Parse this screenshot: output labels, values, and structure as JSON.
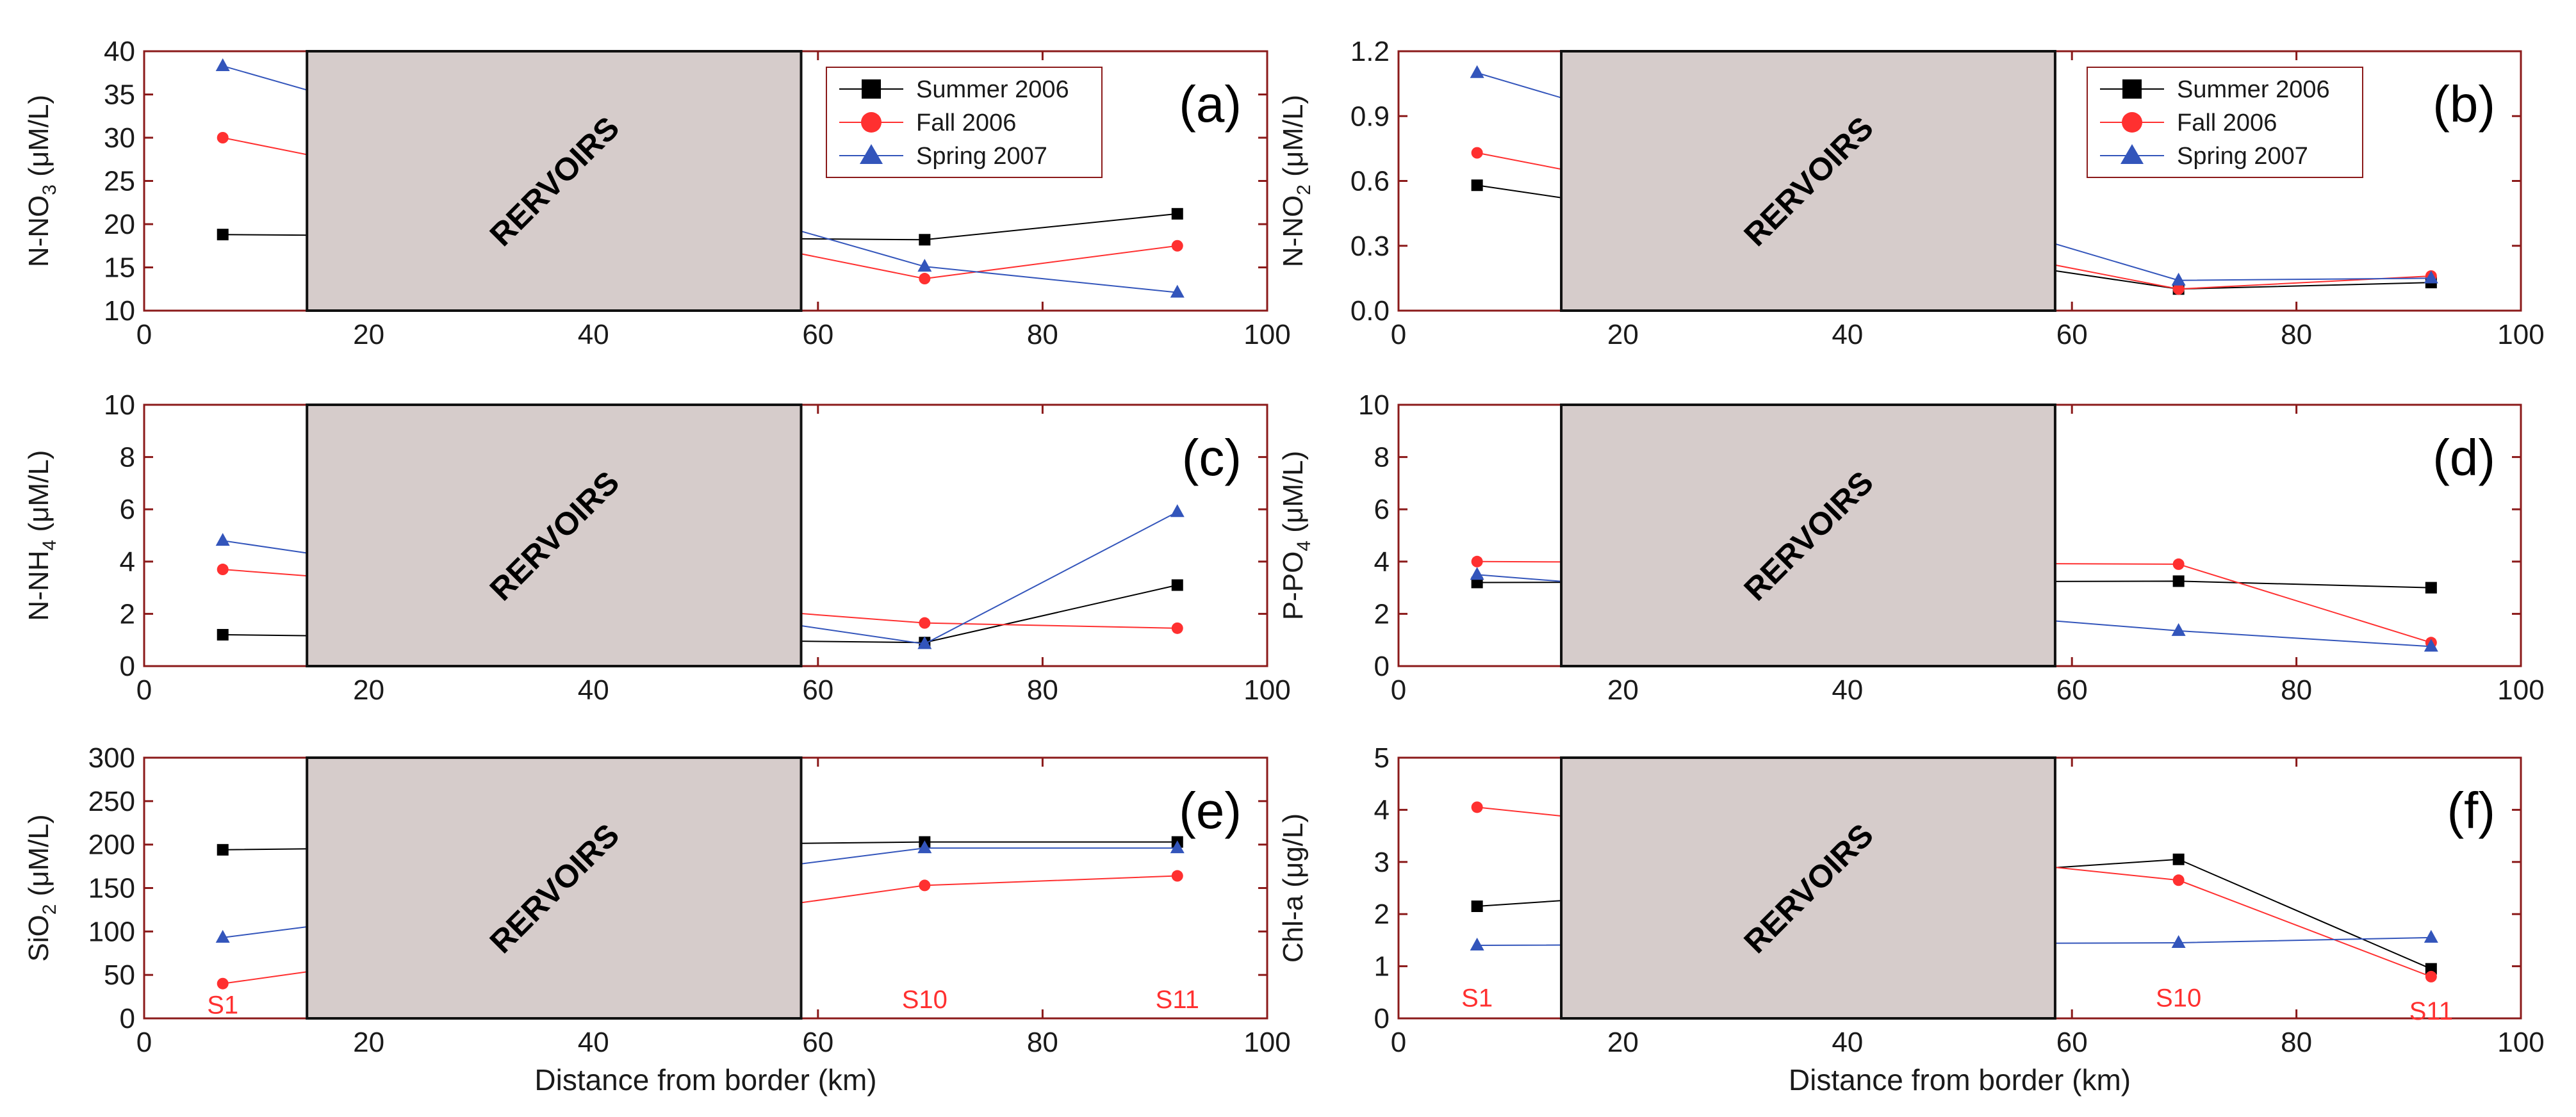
{
  "chart_data": [
    {
      "id": "a",
      "type": "line",
      "panel_tag": "(a)",
      "ylabel": {
        "base": "N-NO",
        "sub": "3",
        "unit": " (μM/L)"
      },
      "xlim": [
        0,
        100
      ],
      "ylim": [
        10,
        40
      ],
      "xticks": [
        0,
        20,
        40,
        60,
        80,
        100
      ],
      "yticks": [
        10,
        15,
        20,
        25,
        30,
        35,
        40
      ],
      "xlabel": "",
      "reservoir": {
        "label": "RERVOIRS",
        "x_range": [
          14.5,
          58.5
        ]
      },
      "legend": {
        "show": true,
        "position": "top-right"
      },
      "stations": [],
      "series": [
        {
          "name": "Summer 2006",
          "color": "#000000",
          "marker": "square",
          "points": [
            {
              "x": 7,
              "y": 18.8
            },
            {
              "x": 69.5,
              "y": 18.2
            },
            {
              "x": 92,
              "y": 21.2
            }
          ]
        },
        {
          "name": "Fall 2006",
          "color": "#ff3030",
          "marker": "circle",
          "points": [
            {
              "x": 7,
              "y": 30
            },
            {
              "x": 69.5,
              "y": 13.7
            },
            {
              "x": 92,
              "y": 17.5
            }
          ]
        },
        {
          "name": "Spring 2007",
          "color": "#3355bb",
          "marker": "triangle",
          "points": [
            {
              "x": 7,
              "y": 38.3
            },
            {
              "x": 69.5,
              "y": 15.1
            },
            {
              "x": 92,
              "y": 12.1
            }
          ]
        }
      ]
    },
    {
      "id": "b",
      "type": "line",
      "panel_tag": "(b)",
      "ylabel": {
        "base": "N-NO",
        "sub": "2",
        "unit": " (μM/L)"
      },
      "xlim": [
        0,
        100
      ],
      "ylim": [
        0,
        1.2
      ],
      "xticks": [
        0,
        20,
        40,
        60,
        80,
        100
      ],
      "yticks": [
        "0.0",
        "0.3",
        "0.6",
        "0.9",
        "1.2"
      ],
      "xlabel": "",
      "reservoir": {
        "label": "RERVOIRS",
        "x_range": [
          14.5,
          58.5
        ]
      },
      "legend": {
        "show": true,
        "position": "top-right"
      },
      "stations": [],
      "series": [
        {
          "name": "Summer 2006",
          "color": "#000000",
          "marker": "square",
          "points": [
            {
              "x": 7,
              "y": 0.58
            },
            {
              "x": 69.5,
              "y": 0.1
            },
            {
              "x": 92,
              "y": 0.13
            }
          ]
        },
        {
          "name": "Fall 2006",
          "color": "#ff3030",
          "marker": "circle",
          "points": [
            {
              "x": 7,
              "y": 0.73
            },
            {
              "x": 69.5,
              "y": 0.1
            },
            {
              "x": 92,
              "y": 0.16
            }
          ]
        },
        {
          "name": "Spring 2007",
          "color": "#3355bb",
          "marker": "triangle",
          "points": [
            {
              "x": 7,
              "y": 1.1
            },
            {
              "x": 69.5,
              "y": 0.14
            },
            {
              "x": 92,
              "y": 0.15
            }
          ]
        }
      ]
    },
    {
      "id": "c",
      "type": "line",
      "panel_tag": "(c)",
      "ylabel": {
        "base": "N-NH",
        "sub": "4",
        "unit": " (μM/L)"
      },
      "xlim": [
        0,
        100
      ],
      "ylim": [
        0,
        10
      ],
      "xticks": [
        0,
        20,
        40,
        60,
        80,
        100
      ],
      "yticks": [
        0,
        2,
        4,
        6,
        8,
        10
      ],
      "xlabel": "",
      "reservoir": {
        "label": "RERVOIRS",
        "x_range": [
          14.5,
          58.5
        ]
      },
      "legend": {
        "show": false
      },
      "stations": [],
      "series": [
        {
          "name": "Summer 2006",
          "color": "#000000",
          "marker": "square",
          "points": [
            {
              "x": 7,
              "y": 1.2
            },
            {
              "x": 69.5,
              "y": 0.9
            },
            {
              "x": 92,
              "y": 3.1
            }
          ]
        },
        {
          "name": "Fall 2006",
          "color": "#ff3030",
          "marker": "circle",
          "points": [
            {
              "x": 7,
              "y": 3.7
            },
            {
              "x": 69.5,
              "y": 1.65
            },
            {
              "x": 92,
              "y": 1.45
            }
          ]
        },
        {
          "name": "Spring 2007",
          "color": "#3355bb",
          "marker": "triangle",
          "points": [
            {
              "x": 7,
              "y": 4.8
            },
            {
              "x": 69.5,
              "y": 0.85
            },
            {
              "x": 92,
              "y": 5.9
            }
          ]
        }
      ]
    },
    {
      "id": "d",
      "type": "line",
      "panel_tag": "(d)",
      "ylabel": {
        "base": "P-PO",
        "sub": "4",
        "unit": " (μM/L)"
      },
      "xlim": [
        0,
        100
      ],
      "ylim": [
        0,
        10
      ],
      "xticks": [
        0,
        20,
        40,
        60,
        80,
        100
      ],
      "yticks": [
        0,
        2,
        4,
        6,
        8,
        10
      ],
      "xlabel": "",
      "reservoir": {
        "label": "RERVOIRS",
        "x_range": [
          14.5,
          58.5
        ]
      },
      "legend": {
        "show": false
      },
      "stations": [],
      "series": [
        {
          "name": "Summer 2006",
          "color": "#000000",
          "marker": "square",
          "points": [
            {
              "x": 7,
              "y": 3.2
            },
            {
              "x": 69.5,
              "y": 3.25
            },
            {
              "x": 92,
              "y": 3.0
            }
          ]
        },
        {
          "name": "Fall 2006",
          "color": "#ff3030",
          "marker": "circle",
          "points": [
            {
              "x": 7,
              "y": 4.0
            },
            {
              "x": 69.5,
              "y": 3.9
            },
            {
              "x": 92,
              "y": 0.9
            }
          ]
        },
        {
          "name": "Spring 2007",
          "color": "#3355bb",
          "marker": "triangle",
          "points": [
            {
              "x": 7,
              "y": 3.5
            },
            {
              "x": 69.5,
              "y": 1.35
            },
            {
              "x": 92,
              "y": 0.75
            }
          ]
        }
      ]
    },
    {
      "id": "e",
      "type": "line",
      "panel_tag": "(e)",
      "ylabel": {
        "base": "SiO",
        "sub": "2",
        "unit": " (μM/L)"
      },
      "xlim": [
        0,
        100
      ],
      "ylim": [
        0,
        300
      ],
      "xticks": [
        0,
        20,
        40,
        60,
        80,
        100
      ],
      "yticks": [
        0,
        50,
        100,
        150,
        200,
        250,
        300
      ],
      "xlabel": "Distance from border (km)",
      "reservoir": {
        "label": "RERVOIRS",
        "x_range": [
          14.5,
          58.5
        ]
      },
      "legend": {
        "show": false
      },
      "stations": [
        {
          "label": "S1",
          "x": 7,
          "y": 16
        },
        {
          "label": "S10",
          "x": 69.5,
          "y": 22
        },
        {
          "label": "S11",
          "x": 92,
          "y": 22
        }
      ],
      "series": [
        {
          "name": "Summer 2006",
          "color": "#000000",
          "marker": "square",
          "points": [
            {
              "x": 7,
              "y": 194
            },
            {
              "x": 69.5,
              "y": 203
            },
            {
              "x": 92,
              "y": 203
            }
          ]
        },
        {
          "name": "Fall 2006",
          "color": "#ff3030",
          "marker": "circle",
          "points": [
            {
              "x": 7,
              "y": 40
            },
            {
              "x": 69.5,
              "y": 153
            },
            {
              "x": 92,
              "y": 164
            }
          ]
        },
        {
          "name": "Spring 2007",
          "color": "#3355bb",
          "marker": "triangle",
          "points": [
            {
              "x": 7,
              "y": 93
            },
            {
              "x": 69.5,
              "y": 196
            },
            {
              "x": 92,
              "y": 196
            }
          ]
        }
      ]
    },
    {
      "id": "f",
      "type": "line",
      "panel_tag": "(f)",
      "ylabel": {
        "base": "Chl-a",
        "sub": "",
        "unit": " (μg/L)"
      },
      "xlim": [
        0,
        100
      ],
      "ylim": [
        0,
        5
      ],
      "xticks": [
        0,
        20,
        40,
        60,
        80,
        100
      ],
      "yticks": [
        0,
        1,
        2,
        3,
        4,
        5
      ],
      "xlabel": "Distance from border (km)",
      "reservoir": {
        "label": "RERVOIRS",
        "x_range": [
          14.5,
          58.5
        ]
      },
      "legend": {
        "show": false
      },
      "stations": [
        {
          "label": "S1",
          "x": 7,
          "y": 0.4
        },
        {
          "label": "S10",
          "x": 69.5,
          "y": 0.4
        },
        {
          "label": "S11",
          "x": 92,
          "y": 0.15
        }
      ],
      "series": [
        {
          "name": "Summer 2006",
          "color": "#000000",
          "marker": "square",
          "points": [
            {
              "x": 7,
              "y": 2.15
            },
            {
              "x": 69.5,
              "y": 3.05
            },
            {
              "x": 92,
              "y": 0.95
            }
          ]
        },
        {
          "name": "Fall 2006",
          "color": "#ff3030",
          "marker": "circle",
          "points": [
            {
              "x": 7,
              "y": 4.05
            },
            {
              "x": 69.5,
              "y": 2.65
            },
            {
              "x": 92,
              "y": 0.8
            }
          ]
        },
        {
          "name": "Spring 2007",
          "color": "#3355bb",
          "marker": "triangle",
          "points": [
            {
              "x": 7,
              "y": 1.4
            },
            {
              "x": 69.5,
              "y": 1.45
            },
            {
              "x": 92,
              "y": 1.55
            }
          ]
        }
      ]
    }
  ],
  "colors": {
    "reservoir_fill": "#d6cccb",
    "reservoir_stroke": "#111111",
    "axis_frame": "#8b1a1a",
    "station_text": "#ff3030"
  }
}
